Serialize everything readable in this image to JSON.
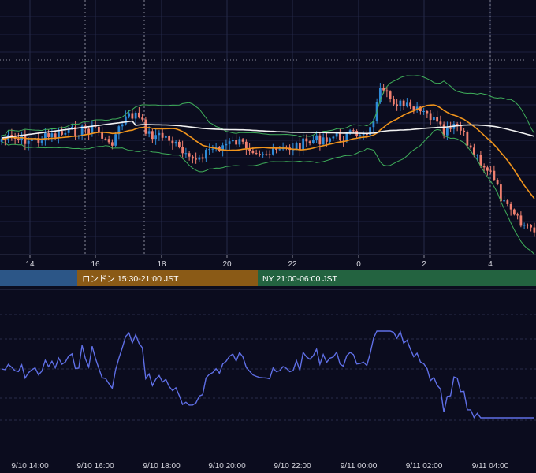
{
  "chart_data": [
    {
      "type": "candlestick",
      "panel": "price",
      "title": "",
      "x_tick_labels": [
        "14",
        "16",
        "18",
        "20",
        "22",
        "0",
        "2",
        "4"
      ],
      "overlays": [
        "bollinger-upper",
        "bollinger-lower",
        "moving-average-short",
        "moving-average-long"
      ],
      "grid": true,
      "colors": {
        "up": "#2e8bd8",
        "down": "#f08070",
        "bollinger": "#3fae5a",
        "ma_short": "#f0941c",
        "ma_long": "#f2f2f2"
      }
    },
    {
      "type": "band",
      "panel": "sessions",
      "segments": [
        {
          "label": "",
          "color": "#2c5687"
        },
        {
          "label": "ロンドン 15:30-21:00 JST",
          "color": "#8a5a16"
        },
        {
          "label": "NY 21:00-06:00 JST",
          "color": "#236340"
        }
      ]
    },
    {
      "type": "line",
      "panel": "oscillator",
      "x_tick_labels": [
        "9/10 14:00",
        "9/10 16:00",
        "9/10 18:00",
        "9/10 20:00",
        "9/10 22:00",
        "9/11 00:00",
        "9/11 02:00",
        "9/11 04:00"
      ],
      "line_color": "#5f6fe6",
      "grid": true
    }
  ]
}
